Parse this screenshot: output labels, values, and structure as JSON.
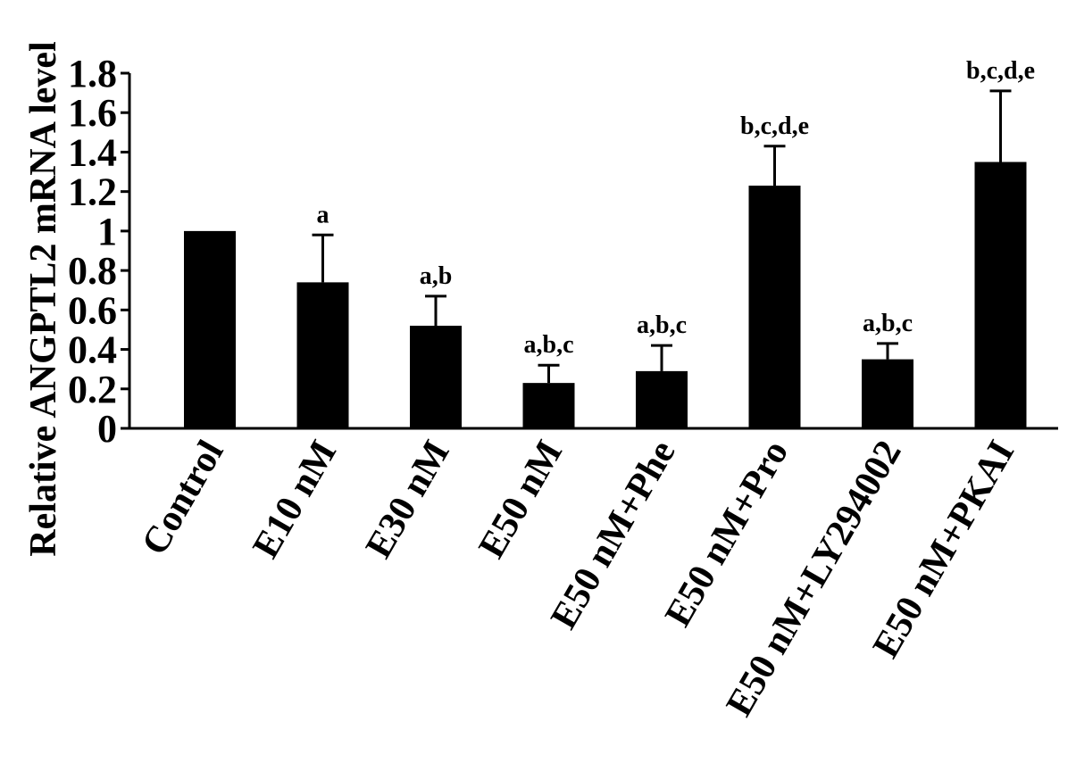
{
  "chart_data": {
    "type": "bar",
    "title": "",
    "xlabel": "",
    "ylabel": "Relative ANGPTL2 mRNA level",
    "ylim": [
      0,
      1.8
    ],
    "yticks": [
      "0",
      "0.2",
      "0.4",
      "0.6",
      "0.8",
      "1",
      "1.2",
      "1.4",
      "1.6",
      "1.8"
    ],
    "grid": false,
    "categories": [
      "Control",
      "E10 nM",
      "E30 nM",
      "E50 nM",
      "E50 nM+Phe",
      "E50 nM+Pro",
      "E50 nM+LY294002",
      "E50 nM+PKAI"
    ],
    "values": [
      1.0,
      0.74,
      0.52,
      0.23,
      0.29,
      1.23,
      0.35,
      1.35
    ],
    "errors": [
      0.0,
      0.24,
      0.15,
      0.09,
      0.13,
      0.2,
      0.08,
      0.36
    ],
    "annotations": [
      "",
      "a",
      "a,b",
      "a,b,c",
      "a,b,c",
      "b,c,d,e",
      "a,b,c",
      "b,c,d,e"
    ],
    "bar_color": "#000000"
  }
}
